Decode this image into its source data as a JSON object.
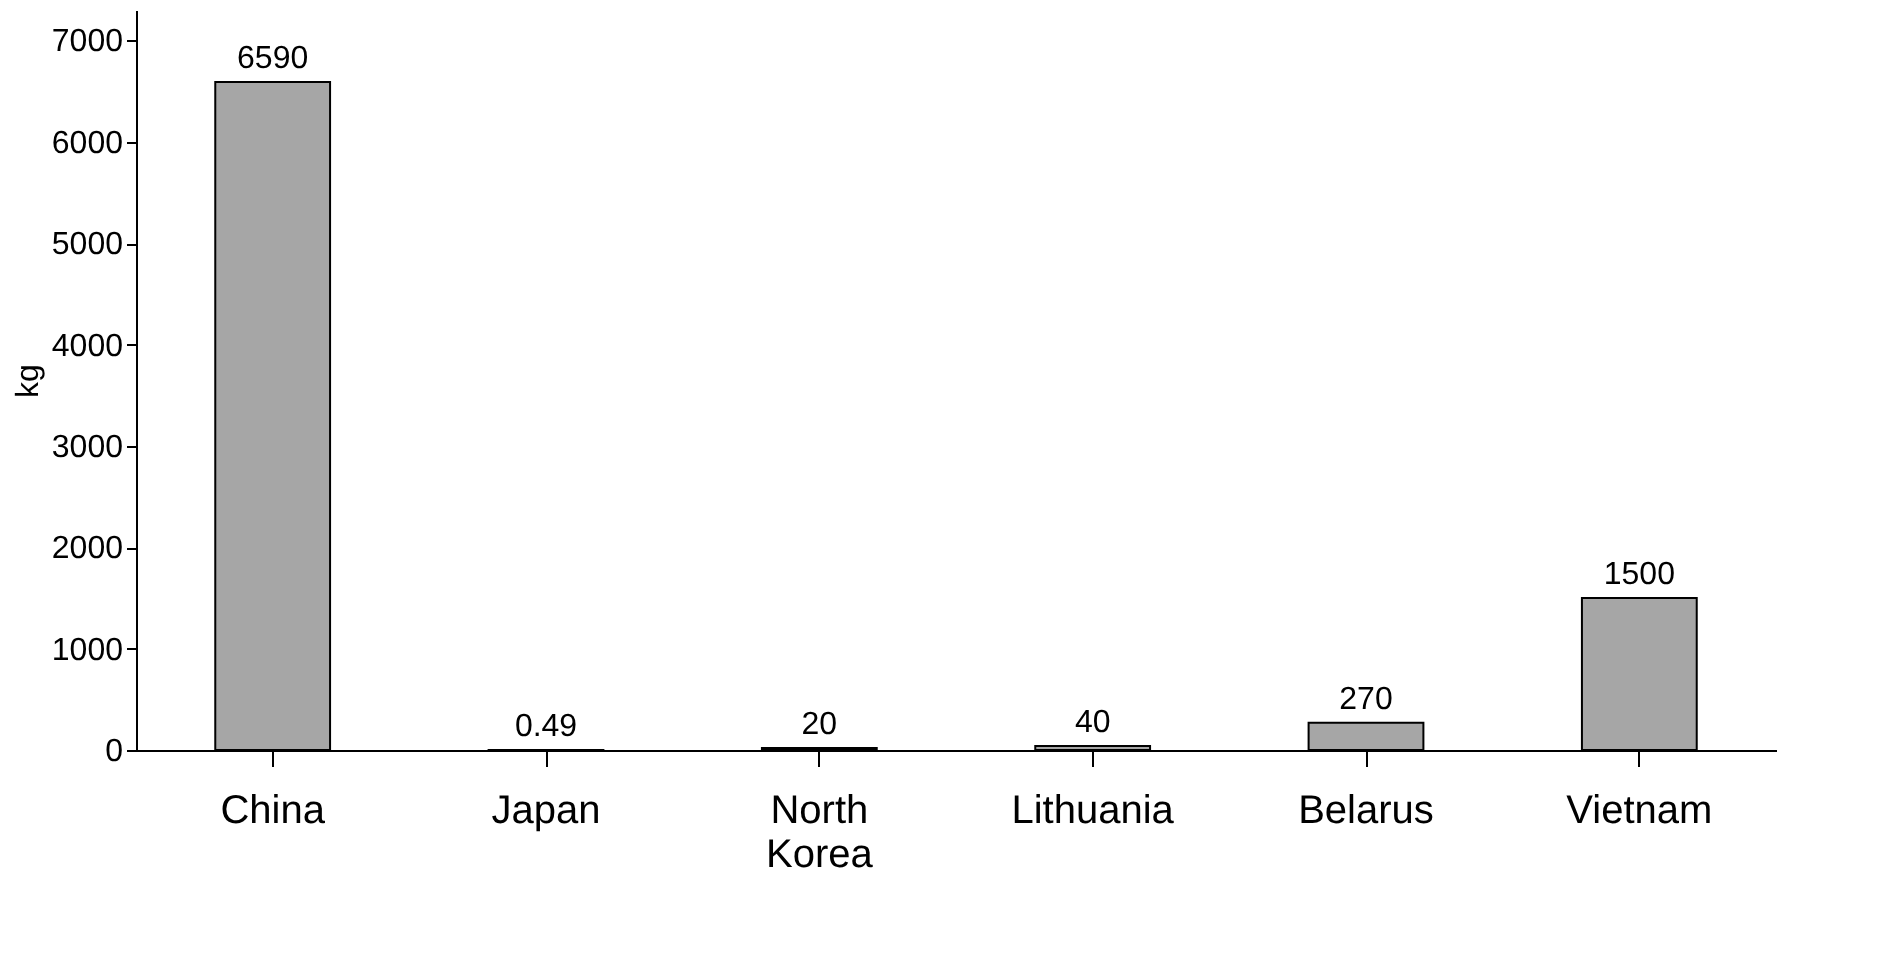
{
  "chart_data": {
    "type": "bar",
    "ylabel": "kg",
    "categories": [
      "China",
      "Japan",
      "North Korea",
      "Lithuania",
      "Belarus",
      "Vietnam"
    ],
    "values": [
      6590,
      0.49,
      20,
      40,
      270,
      1500
    ],
    "color": "#a6a6a6",
    "ylim": [
      0,
      7300
    ],
    "yticks": [
      0,
      1000,
      2000,
      3000,
      4000,
      5000,
      6000,
      7000
    ],
    "grid": false,
    "data_labels": true
  }
}
